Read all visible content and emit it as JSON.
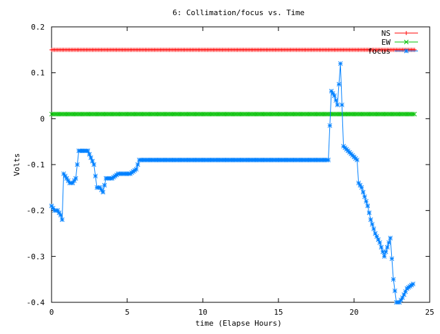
{
  "chart_data": {
    "type": "line",
    "title": "6: Collimation/focus vs. Time",
    "xlabel": "time (Elapse Hours)",
    "ylabel": "Volts",
    "xlim": [
      0,
      25
    ],
    "ylim": [
      -0.4,
      0.2
    ],
    "xticks": [
      "0",
      "5",
      "10",
      "15",
      "20",
      "25"
    ],
    "yticks": [
      "0.2",
      "0.1",
      "0",
      "-0.1",
      "-0.2",
      "-0.3",
      "-0.4"
    ],
    "grid": false,
    "legend_position": "top-right",
    "series": [
      {
        "name": "NS",
        "color": "#ff0000",
        "marker": "plus",
        "x": [
          0,
          24
        ],
        "values": [
          0.15,
          0.15
        ]
      },
      {
        "name": "EW",
        "color": "#00c000",
        "marker": "cross",
        "x": [
          0,
          24
        ],
        "values": [
          0.01,
          0.01
        ]
      },
      {
        "name": "focus",
        "color": "#0080ff",
        "marker": "star",
        "x": [
          0.0,
          0.2,
          0.4,
          0.6,
          0.7,
          0.8,
          1.0,
          1.2,
          1.4,
          1.6,
          1.8,
          2.0,
          2.4,
          2.8,
          3.0,
          3.2,
          3.4,
          3.6,
          3.8,
          4.0,
          4.4,
          4.8,
          5.2,
          5.6,
          5.8,
          8.0,
          10.0,
          12.0,
          14.0,
          16.0,
          18.0,
          18.3,
          18.5,
          18.7,
          18.9,
          19.1,
          19.3,
          19.6,
          19.9,
          20.2,
          20.3,
          20.5,
          20.7,
          20.9,
          21.1,
          21.4,
          21.7,
          21.9,
          22.0,
          22.2,
          22.4,
          22.6,
          22.8,
          23.0,
          23.2,
          23.5,
          23.9
        ],
        "values": [
          -0.19,
          -0.2,
          -0.2,
          -0.21,
          -0.22,
          -0.12,
          -0.13,
          -0.14,
          -0.14,
          -0.13,
          -0.07,
          -0.07,
          -0.07,
          -0.1,
          -0.15,
          -0.15,
          -0.16,
          -0.13,
          -0.13,
          -0.13,
          -0.12,
          -0.12,
          -0.12,
          -0.11,
          -0.09,
          -0.09,
          -0.09,
          -0.09,
          -0.09,
          -0.09,
          -0.09,
          -0.09,
          0.06,
          0.05,
          0.03,
          0.12,
          -0.06,
          -0.07,
          -0.08,
          -0.09,
          -0.14,
          -0.15,
          -0.17,
          -0.19,
          -0.22,
          -0.25,
          -0.27,
          -0.29,
          -0.3,
          -0.28,
          -0.26,
          -0.35,
          -0.4,
          -0.4,
          -0.39,
          -0.37,
          -0.36
        ]
      }
    ]
  }
}
